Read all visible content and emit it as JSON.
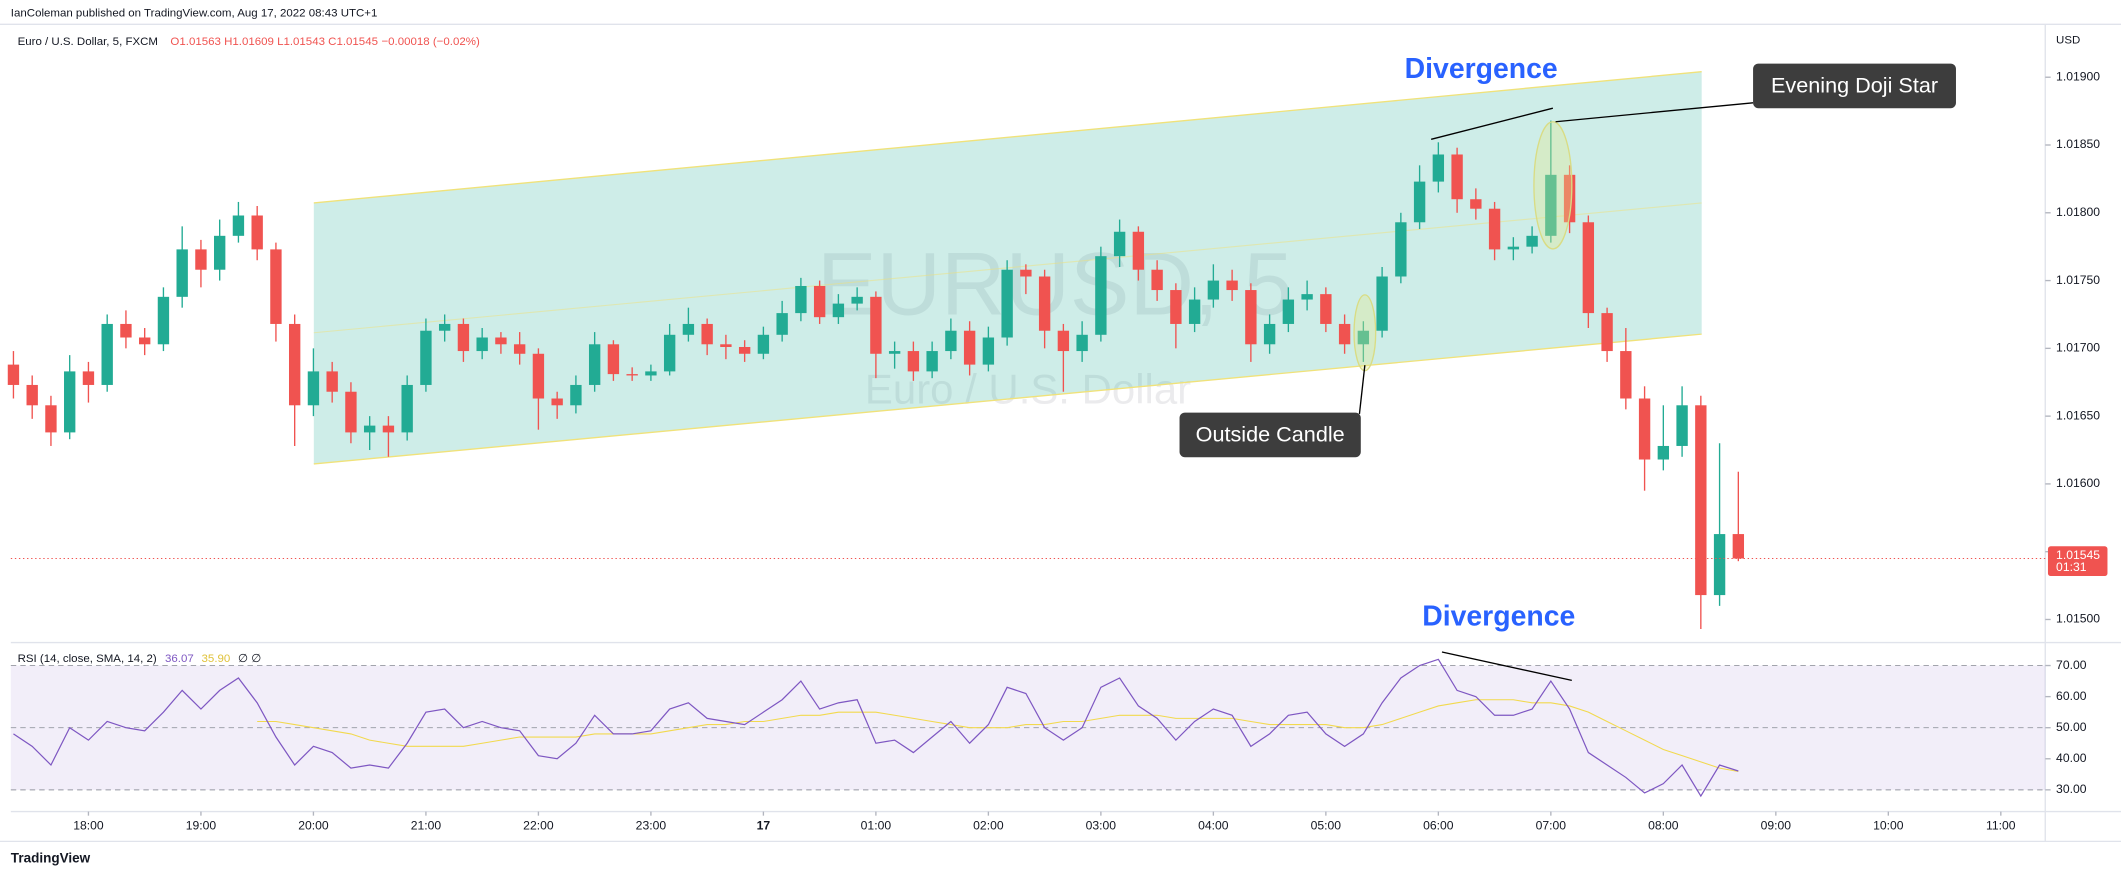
{
  "meta": {
    "publisher": "IanColeman published on TradingView.com, Aug 17, 2022 08:43 UTC+1",
    "footer": "TradingView"
  },
  "chart_data": {
    "type": "candlestick",
    "title": "Euro / U.S. Dollar, 5, FXCM",
    "ohlc_label": "O1.01563 H1.01609 L1.01543 C1.01545",
    "change_label": "−0.00018 (−0.02%)",
    "watermark_symbol": "EURUSD, 5",
    "watermark_name": "Euro / U.S. Dollar",
    "currency": "USD",
    "up_color": "#22ab94",
    "down_color": "#f05350",
    "open": [
      1.01688,
      1.01673,
      1.01658,
      1.01638,
      1.01683,
      1.01673,
      1.01718,
      1.01708,
      1.01703,
      1.01738,
      1.01773,
      1.01758,
      1.01783,
      1.01798,
      1.01773,
      1.01718,
      1.01658,
      1.01683,
      1.01668,
      1.01638,
      1.01643,
      1.01638,
      1.01673,
      1.01713,
      1.01718,
      1.01698,
      1.01708,
      1.01703,
      1.01696,
      1.01663,
      1.01658,
      1.01673,
      1.01703,
      1.01681,
      1.0168,
      1.01683,
      1.0171,
      1.01718,
      1.01703,
      1.01701,
      1.01696,
      1.0171,
      1.01726,
      1.01746,
      1.01723,
      1.01733,
      1.01738,
      1.01696,
      1.01698,
      1.01683,
      1.01698,
      1.01713,
      1.01688,
      1.01708,
      1.01758,
      1.01753,
      1.01713,
      1.01698,
      1.0171,
      1.01768,
      1.01786,
      1.01758,
      1.01743,
      1.01718,
      1.01736,
      1.0175,
      1.01743,
      1.01703,
      1.01718,
      1.01736,
      1.0174,
      1.01718,
      1.01703,
      1.01713,
      1.01753,
      1.01793,
      1.01823,
      1.01843,
      1.0181,
      1.01803,
      1.01773,
      1.01775,
      1.01783,
      1.01828,
      1.01793,
      1.01726,
      1.01698,
      1.01663,
      1.01618,
      1.01628,
      1.01658,
      1.01518,
      1.01563
    ],
    "high": [
      1.01698,
      1.0168,
      1.01665,
      1.01695,
      1.0169,
      1.01725,
      1.01728,
      1.01715,
      1.01745,
      1.0179,
      1.0178,
      1.01795,
      1.01808,
      1.01805,
      1.01778,
      1.01725,
      1.017,
      1.0169,
      1.01675,
      1.0165,
      1.0165,
      1.0168,
      1.01722,
      1.01725,
      1.01722,
      1.01715,
      1.01712,
      1.01712,
      1.017,
      1.01668,
      1.0168,
      1.01712,
      1.01706,
      1.01686,
      1.01688,
      1.01718,
      1.0173,
      1.01722,
      1.0171,
      1.01706,
      1.01716,
      1.01735,
      1.01752,
      1.0175,
      1.0174,
      1.01745,
      1.01742,
      1.01705,
      1.01705,
      1.01705,
      1.01722,
      1.0172,
      1.01716,
      1.01765,
      1.01762,
      1.01758,
      1.01718,
      1.0172,
      1.01775,
      1.01795,
      1.0179,
      1.01765,
      1.01748,
      1.01745,
      1.01762,
      1.01758,
      1.01748,
      1.01725,
      1.01745,
      1.0175,
      1.01745,
      1.01725,
      1.0172,
      1.0176,
      1.018,
      1.01835,
      1.01852,
      1.01848,
      1.01818,
      1.01808,
      1.01782,
      1.0179,
      1.01868,
      1.01835,
      1.01798,
      1.0173,
      1.01715,
      1.01672,
      1.01658,
      1.01672,
      1.01665,
      1.0163,
      1.01609
    ],
    "low": [
      1.01663,
      1.01648,
      1.01628,
      1.01633,
      1.0166,
      1.01668,
      1.017,
      1.01695,
      1.01698,
      1.0173,
      1.01745,
      1.0175,
      1.01778,
      1.01765,
      1.01705,
      1.01628,
      1.0165,
      1.0166,
      1.0163,
      1.01625,
      1.0162,
      1.01632,
      1.01668,
      1.01705,
      1.0169,
      1.01692,
      1.01696,
      1.01688,
      1.0164,
      1.01648,
      1.01652,
      1.01668,
      1.01676,
      1.01676,
      1.01676,
      1.0168,
      1.01705,
      1.01695,
      1.01692,
      1.0169,
      1.01692,
      1.01705,
      1.0172,
      1.01718,
      1.01718,
      1.01728,
      1.01678,
      1.01685,
      1.01676,
      1.01678,
      1.01692,
      1.0168,
      1.01683,
      1.01702,
      1.0174,
      1.017,
      1.01668,
      1.0169,
      1.01705,
      1.0176,
      1.0175,
      1.01735,
      1.017,
      1.01712,
      1.0173,
      1.01735,
      1.0169,
      1.01696,
      1.01712,
      1.01728,
      1.01712,
      1.01696,
      1.0169,
      1.01708,
      1.01748,
      1.01788,
      1.01815,
      1.018,
      1.01795,
      1.01765,
      1.01765,
      1.0177,
      1.01778,
      1.01785,
      1.01715,
      1.0169,
      1.01655,
      1.01595,
      1.0161,
      1.0162,
      1.01493,
      1.0151,
      1.01543
    ],
    "close": [
      1.01673,
      1.01658,
      1.01638,
      1.01683,
      1.01673,
      1.01718,
      1.01708,
      1.01703,
      1.01738,
      1.01773,
      1.01758,
      1.01783,
      1.01798,
      1.01773,
      1.01718,
      1.01658,
      1.01683,
      1.01668,
      1.01638,
      1.01643,
      1.01638,
      1.01673,
      1.01713,
      1.01718,
      1.01698,
      1.01708,
      1.01703,
      1.01696,
      1.01663,
      1.01658,
      1.01673,
      1.01703,
      1.01681,
      1.0168,
      1.01683,
      1.0171,
      1.01718,
      1.01703,
      1.01701,
      1.01696,
      1.0171,
      1.01726,
      1.01746,
      1.01723,
      1.01733,
      1.01738,
      1.01696,
      1.01698,
      1.01683,
      1.01698,
      1.01713,
      1.01688,
      1.01708,
      1.01758,
      1.01753,
      1.01713,
      1.01698,
      1.0171,
      1.01768,
      1.01786,
      1.01758,
      1.01743,
      1.01718,
      1.01736,
      1.0175,
      1.01743,
      1.01703,
      1.01718,
      1.01736,
      1.0174,
      1.01718,
      1.01703,
      1.01713,
      1.01753,
      1.01793,
      1.01823,
      1.01843,
      1.0181,
      1.01803,
      1.01773,
      1.01775,
      1.01783,
      1.01828,
      1.01793,
      1.01726,
      1.01698,
      1.01663,
      1.01618,
      1.01628,
      1.01658,
      1.01518,
      1.01563,
      1.01545
    ],
    "ylim": [
      1.01483,
      1.01939
    ],
    "yticks": [
      {
        "value": 1.015,
        "label": "1.01500"
      },
      {
        "value": 1.0155,
        "label": "1.01550"
      },
      {
        "value": 1.016,
        "label": "1.01600"
      },
      {
        "value": 1.0165,
        "label": "1.01650"
      },
      {
        "value": 1.017,
        "label": "1.01700"
      },
      {
        "value": 1.0175,
        "label": "1.01750"
      },
      {
        "value": 1.018,
        "label": "1.01800"
      },
      {
        "value": 1.0185,
        "label": "1.01850"
      },
      {
        "value": 1.019,
        "label": "1.01900"
      }
    ],
    "xlim": [
      -0.14,
      108.37
    ],
    "xticks": [
      {
        "value": 4,
        "label": "18:00"
      },
      {
        "value": 10,
        "label": "19:00"
      },
      {
        "value": 16,
        "label": "20:00"
      },
      {
        "value": 22,
        "label": "21:00"
      },
      {
        "value": 28,
        "label": "22:00"
      },
      {
        "value": 34,
        "label": "23:00"
      },
      {
        "value": 40,
        "label": "17"
      },
      {
        "value": 46,
        "label": "01:00"
      },
      {
        "value": 52,
        "label": "02:00"
      },
      {
        "value": 58,
        "label": "03:00"
      },
      {
        "value": 64,
        "label": "04:00"
      },
      {
        "value": 70,
        "label": "05:00"
      },
      {
        "value": 76,
        "label": "06:00"
      },
      {
        "value": 82,
        "label": "07:00"
      },
      {
        "value": 88,
        "label": "08:00"
      },
      {
        "value": 94,
        "label": "09:00"
      },
      {
        "value": 100,
        "label": "10:00"
      },
      {
        "value": 106,
        "label": "11:00"
      }
    ],
    "last_price_label": "1.01545",
    "countdown": "01:31",
    "annotations": {
      "divergence_top": "Divergence",
      "divergence_rsi": "Divergence",
      "evening_doji": "Evening Doji Star",
      "outside_candle": "Outside Candle"
    },
    "rsi": {
      "label": "RSI (14, close, SMA, 14, 2)",
      "color": "#7e57c2",
      "value_label": "36.07",
      "extra": "∅ ∅",
      "values": [
        48,
        44,
        38,
        50,
        46,
        52,
        50,
        49,
        55,
        62,
        56,
        62,
        66,
        58,
        47,
        38,
        44,
        42,
        37,
        38,
        37,
        45,
        55,
        56,
        50,
        52,
        50,
        49,
        41,
        40,
        45,
        54,
        48,
        48,
        49,
        56,
        58,
        53,
        52,
        51,
        55,
        59,
        65,
        56,
        58,
        59,
        45,
        46,
        42,
        47,
        52,
        45,
        51,
        63,
        61,
        50,
        46,
        50,
        63,
        66,
        57,
        53,
        46,
        52,
        56,
        54,
        44,
        48,
        54,
        55,
        48,
        44,
        48,
        58,
        66,
        70,
        72,
        62,
        60,
        54,
        54,
        56,
        65,
        56,
        42,
        38,
        34,
        29,
        32,
        38,
        28,
        38,
        36.07
      ],
      "sma": {
        "color": "#f2d94e",
        "value_label": "35.90",
        "values": [
          null,
          null,
          null,
          null,
          null,
          null,
          null,
          null,
          null,
          null,
          null,
          null,
          null,
          52,
          52,
          51,
          50,
          49,
          48,
          46,
          45,
          44,
          44,
          44,
          44,
          45,
          46,
          47,
          47,
          47,
          47,
          48,
          48,
          48,
          48,
          49,
          50,
          51,
          51,
          52,
          52,
          53,
          54,
          54,
          55,
          55,
          55,
          54,
          53,
          52,
          51,
          50,
          50,
          50,
          51,
          51,
          52,
          52,
          53,
          54,
          54,
          54,
          53,
          53,
          53,
          53,
          52,
          51,
          51,
          51,
          51,
          50,
          50,
          51,
          53,
          55,
          57,
          58,
          59,
          59,
          59,
          58,
          58,
          57,
          55,
          52,
          49,
          46,
          43,
          41,
          39,
          37,
          35.9
        ]
      },
      "ylim": [
        23.0,
        76.1
      ],
      "levels": [
        70,
        50,
        30
      ],
      "yticks": [
        {
          "value": 30,
          "label": "30.00"
        },
        {
          "value": 40,
          "label": "40.00"
        },
        {
          "value": 50,
          "label": "50.00"
        },
        {
          "value": 60,
          "label": "60.00"
        },
        {
          "value": 70,
          "label": "70.00"
        }
      ]
    }
  }
}
